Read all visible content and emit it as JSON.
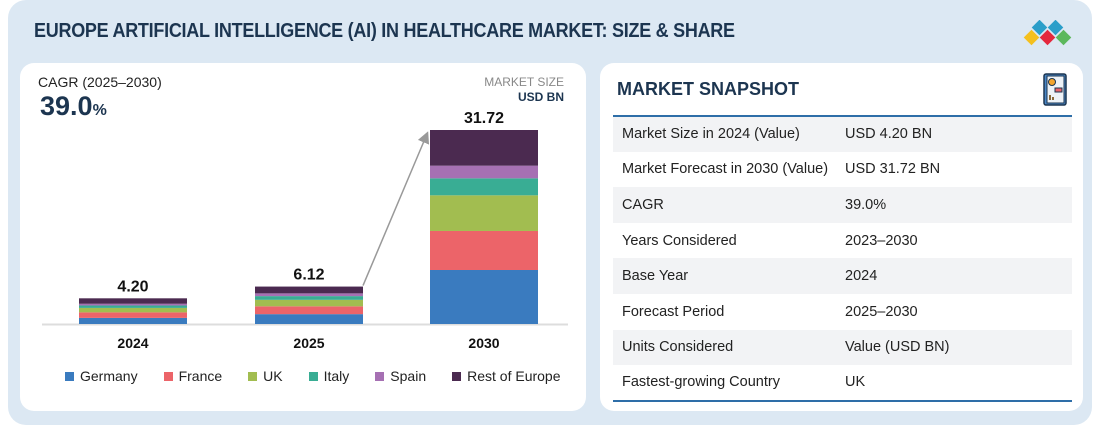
{
  "title": "EUROPE ARTIFICIAL INTELLIGENCE (AI) IN HEALTHCARE MARKET: SIZE & SHARE",
  "cagr": {
    "label": "CAGR (2025–2030)",
    "value": "39.0",
    "unit": "%"
  },
  "market_size": {
    "label": "MARKET SIZE",
    "unit": "USD BN"
  },
  "chart_data": {
    "type": "bar",
    "stacked": true,
    "categories": [
      "2024",
      "2025",
      "2030"
    ],
    "totals": [
      "4.20",
      "6.12",
      "31.72"
    ],
    "series": [
      {
        "name": "Germany",
        "color": "#3a7bbf",
        "values": [
          1.0,
          1.61,
          8.83
        ]
      },
      {
        "name": "France",
        "color": "#ec6469",
        "values": [
          0.9,
          1.28,
          6.38
        ]
      },
      {
        "name": "UK",
        "color": "#a2bd50",
        "values": [
          0.73,
          1.06,
          5.83
        ]
      },
      {
        "name": "Italy",
        "color": "#39ad94",
        "values": [
          0.4,
          0.61,
          2.78
        ]
      },
      {
        "name": "Spain",
        "color": "#a670b3",
        "values": [
          0.28,
          0.45,
          2.07
        ]
      },
      {
        "name": "Rest of Europe",
        "color": "#4b2a50",
        "values": [
          0.89,
          1.11,
          5.83
        ]
      }
    ],
    "legend": "bottom",
    "grid": false
  },
  "snapshot": {
    "title": "MARKET SNAPSHOT",
    "rows": [
      {
        "label": "Market Size in 2024 (Value)",
        "value": "USD 4.20 BN"
      },
      {
        "label": "Market Forecast in 2030 (Value)",
        "value": "USD 31.72 BN"
      },
      {
        "label": "CAGR",
        "value": "39.0%"
      },
      {
        "label": "Years Considered",
        "value": "2023–2030"
      },
      {
        "label": "Base Year",
        "value": "2024"
      },
      {
        "label": "Forecast Period",
        "value": "2025–2030"
      },
      {
        "label": "Units Considered",
        "value": "Value (USD BN)"
      },
      {
        "label": "Fastest-growing Country",
        "value": "UK"
      }
    ]
  }
}
